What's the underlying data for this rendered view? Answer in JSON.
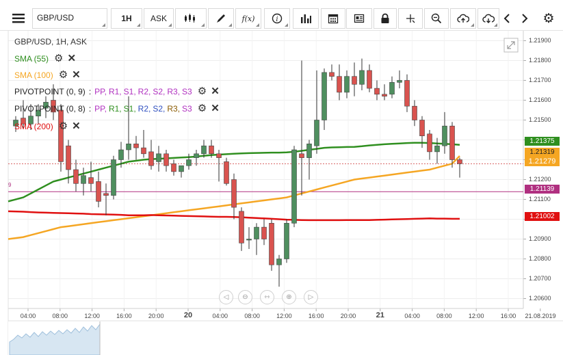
{
  "toolbar": {
    "symbol": "GBP/USD",
    "timeframe": "1H",
    "price_type": "ASK",
    "fx_label": "f(x)"
  },
  "legend": {
    "instrument": "GBP/USD, 1H, ASK",
    "sma55": "SMA (55)",
    "sma100": "SMA (100)",
    "pivot1_label": "PIVOTPOINT (0, 9)",
    "pivot2_label": "PIVOTPOINT (0, 8)",
    "pivot_colon": ":",
    "pv_pp": "PP,",
    "pv_r1": "R1,",
    "pv_s1": "S1,",
    "pv_r2": "R2,",
    "pv_s2": "S2,",
    "pv_r3": "R3,",
    "pv_s3": "S3",
    "sma200": "SMA (200)",
    "pivot_marker": "9"
  },
  "colors": {
    "bull": "#4f8f5f",
    "bear": "#d9534f",
    "sma55": "#2f8f1f",
    "sma100": "#f5a623",
    "sma200": "#e01010",
    "pivot_line": "#b03080",
    "current_line": "#cc3333"
  },
  "price_axis": {
    "labels": [
      "1.21900",
      "1.21800",
      "1.21700",
      "1.21600",
      "1.21500",
      "1.21400",
      "1.21300",
      "1.21200",
      "1.21100",
      "1.21000",
      "1.20900",
      "1.20800",
      "1.20700",
      "1.20600"
    ]
  },
  "price_tags": {
    "sma55": "1.21375",
    "sma100": "1.21319",
    "current": "1.21279",
    "pivot": "1.21139",
    "sma200": "1.21002"
  },
  "time_axis": {
    "labels": [
      "04:00",
      "08:00",
      "12:00",
      "16:00",
      "20:00",
      "20",
      "04:00",
      "08:00",
      "12:00",
      "16:00",
      "20:00",
      "21",
      "04:00",
      "08:00",
      "12:00",
      "16:00",
      "21.08.2019"
    ]
  },
  "chart_data": {
    "type": "candlestick",
    "instrument": "GBP/USD",
    "timeframe": "1H",
    "ylim": [
      1.2055,
      1.2195
    ],
    "pivot_level": 1.21139,
    "current_price": 1.21279,
    "candles": [
      [
        1.2147,
        1.2152,
        1.2144,
        1.215
      ],
      [
        1.2151,
        1.216,
        1.2146,
        1.2148
      ],
      [
        1.2148,
        1.2158,
        1.2145,
        1.2152
      ],
      [
        1.2152,
        1.2158,
        1.2148,
        1.2155
      ],
      [
        1.2156,
        1.2162,
        1.2151,
        1.2159
      ],
      [
        1.216,
        1.2168,
        1.215,
        1.2154
      ],
      [
        1.2155,
        1.2158,
        1.2124,
        1.2129
      ],
      [
        1.2137,
        1.214,
        1.2118,
        1.2125
      ],
      [
        1.2125,
        1.213,
        1.2114,
        1.2118
      ],
      [
        1.2118,
        1.2126,
        1.2112,
        1.2122
      ],
      [
        1.2121,
        1.2129,
        1.2114,
        1.2118
      ],
      [
        1.2119,
        1.2124,
        1.2106,
        1.2109
      ],
      [
        1.2113,
        1.2118,
        1.2102,
        1.2112
      ],
      [
        1.2112,
        1.2132,
        1.211,
        1.213
      ],
      [
        1.213,
        1.2139,
        1.2126,
        1.2135
      ],
      [
        1.2135,
        1.2162,
        1.213,
        1.2138
      ],
      [
        1.2138,
        1.2142,
        1.213,
        1.2136
      ],
      [
        1.2136,
        1.2145,
        1.2131,
        1.2133
      ],
      [
        1.2134,
        1.214,
        1.2125,
        1.2127
      ],
      [
        1.2129,
        1.2137,
        1.2124,
        1.2133
      ],
      [
        1.2133,
        1.2135,
        1.2124,
        1.2127
      ],
      [
        1.2128,
        1.213,
        1.2122,
        1.2124
      ],
      [
        1.2124,
        1.2127,
        1.2121,
        1.2127
      ],
      [
        1.2127,
        1.2133,
        1.2125,
        1.213
      ],
      [
        1.2131,
        1.2135,
        1.2127,
        1.2133
      ],
      [
        1.2133,
        1.214,
        1.2131,
        1.2137
      ],
      [
        1.2137,
        1.214,
        1.2131,
        1.2133
      ],
      [
        1.2133,
        1.2135,
        1.2119,
        1.2131
      ],
      [
        1.2129,
        1.2131,
        1.2117,
        1.2118
      ],
      [
        1.212,
        1.2123,
        1.21,
        1.2106
      ],
      [
        1.2104,
        1.2106,
        1.2084,
        1.2088
      ],
      [
        1.209,
        1.2096,
        1.2085,
        1.209
      ],
      [
        1.209,
        1.2098,
        1.2082,
        1.2096
      ],
      [
        1.2096,
        1.21,
        1.2087,
        1.209
      ],
      [
        1.2098,
        1.21,
        1.2074,
        1.2077
      ],
      [
        1.2077,
        1.2082,
        1.2066,
        1.208
      ],
      [
        1.208,
        1.21,
        1.2078,
        1.2098
      ],
      [
        1.2098,
        1.2137,
        1.2096,
        1.2135
      ],
      [
        1.2133,
        1.218,
        1.2112,
        1.2131
      ],
      [
        1.2131,
        1.214,
        1.212,
        1.2138
      ],
      [
        1.2137,
        1.2175,
        1.2133,
        1.215
      ],
      [
        1.215,
        1.2176,
        1.2145,
        1.2174
      ],
      [
        1.2174,
        1.2178,
        1.217,
        1.2172
      ],
      [
        1.2172,
        1.2178,
        1.216,
        1.2164
      ],
      [
        1.2164,
        1.2175,
        1.2161,
        1.2172
      ],
      [
        1.2172,
        1.2179,
        1.2162,
        1.2168
      ],
      [
        1.2168,
        1.2181,
        1.2165,
        1.2175
      ],
      [
        1.2175,
        1.2178,
        1.2164,
        1.2166
      ],
      [
        1.2166,
        1.217,
        1.216,
        1.2163
      ],
      [
        1.2163,
        1.2168,
        1.216,
        1.2162
      ],
      [
        1.2163,
        1.2172,
        1.2161,
        1.2169
      ],
      [
        1.2169,
        1.2175,
        1.2166,
        1.217
      ],
      [
        1.217,
        1.2173,
        1.2154,
        1.2157
      ],
      [
        1.2157,
        1.216,
        1.2147,
        1.215
      ],
      [
        1.215,
        1.2152,
        1.2136,
        1.2142
      ],
      [
        1.2143,
        1.2145,
        1.213,
        1.2134
      ],
      [
        1.2134,
        1.2141,
        1.2128,
        1.2137
      ],
      [
        1.2137,
        1.2154,
        1.2133,
        1.2147
      ],
      [
        1.2147,
        1.2149,
        1.2126,
        1.213
      ],
      [
        1.213,
        1.2131,
        1.2121,
        1.2128
      ]
    ],
    "series": [
      {
        "name": "SMA (55)",
        "values": [
          1.2109,
          1.2111,
          1.2113,
          1.2115,
          1.2117,
          1.2119,
          1.212,
          1.2121,
          1.2122,
          1.2123,
          1.2124,
          1.2125,
          1.2126,
          1.2127,
          1.2128,
          1.2129,
          1.21295,
          1.213,
          1.21303,
          1.21305,
          1.21307,
          1.21309,
          1.21311,
          1.21313,
          1.21316,
          1.2132,
          1.21323,
          1.21326,
          1.21328,
          1.2133,
          1.21332,
          1.21333,
          1.21334,
          1.21335,
          1.21336,
          1.21336,
          1.21337,
          1.2134,
          1.21345,
          1.2135,
          1.21355,
          1.2136,
          1.21362,
          1.21363,
          1.21364,
          1.21365,
          1.21368,
          1.21372,
          1.21375,
          1.21378,
          1.2138,
          1.21382,
          1.21384,
          1.21385,
          1.21385,
          1.21384,
          1.21382,
          1.2138,
          1.21378,
          1.21375
        ]
      },
      {
        "name": "SMA (100)",
        "values": [
          1.209,
          1.2091,
          1.2092,
          1.2093,
          1.2094,
          1.2095,
          1.2096,
          1.20965,
          1.2097,
          1.20975,
          1.2098,
          1.20985,
          1.2099,
          1.20995,
          1.21,
          1.21005,
          1.2101,
          1.21015,
          1.2102,
          1.21025,
          1.2103,
          1.21035,
          1.2104,
          1.21045,
          1.2105,
          1.21055,
          1.2106,
          1.21065,
          1.2107,
          1.21075,
          1.2108,
          1.21085,
          1.2109,
          1.21095,
          1.211,
          1.21105,
          1.2111,
          1.2112,
          1.2113,
          1.2114,
          1.2115,
          1.2116,
          1.2117,
          1.2118,
          1.2119,
          1.212,
          1.21205,
          1.2121,
          1.21215,
          1.2122,
          1.21225,
          1.2123,
          1.21235,
          1.2124,
          1.21245,
          1.2125,
          1.2126,
          1.2127,
          1.2128,
          1.21319
        ]
      },
      {
        "name": "SMA (200)",
        "values": [
          1.2104,
          1.21038,
          1.21036,
          1.21034,
          1.21033,
          1.21032,
          1.21031,
          1.2103,
          1.21029,
          1.21028,
          1.21026,
          1.21025,
          1.21024,
          1.21023,
          1.21022,
          1.2102,
          1.2102,
          1.2102,
          1.21021,
          1.2102,
          1.21019,
          1.21018,
          1.21017,
          1.21016,
          1.21015,
          1.21014,
          1.21013,
          1.21012,
          1.21012,
          1.21011,
          1.2101,
          1.21008,
          1.21006,
          1.21004,
          1.21002,
          1.21,
          1.20998,
          1.20997,
          1.20996,
          1.20995,
          1.20995,
          1.20995,
          1.20995,
          1.20995,
          1.20996,
          1.20996,
          1.20996,
          1.20996,
          1.20997,
          1.20998,
          1.20999,
          1.21,
          1.21001,
          1.21002,
          1.21003,
          1.21004,
          1.21003,
          1.21003,
          1.21002,
          1.21002
        ]
      }
    ]
  }
}
